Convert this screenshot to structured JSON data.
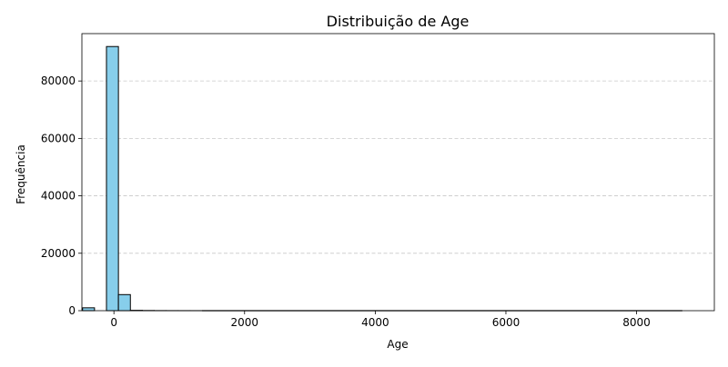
{
  "chart_data": {
    "type": "bar",
    "title": "Distribuição de Age",
    "xlabel": "Age",
    "ylabel": "Frequência",
    "xlim": [
      -490,
      9190
    ],
    "ylim": [
      0,
      96500
    ],
    "xticks": [
      0,
      2000,
      4000,
      6000,
      8000
    ],
    "yticks": [
      0,
      20000,
      40000,
      60000,
      80000
    ],
    "xtick_labels": [
      "0",
      "2000",
      "4000",
      "6000",
      "8000"
    ],
    "ytick_labels": [
      "0",
      "20000",
      "40000",
      "60000",
      "80000"
    ],
    "grid": {
      "axis": "y",
      "style": "dashed"
    },
    "bin_width": 183,
    "bins": [
      {
        "x0": -480,
        "x1": -297,
        "count": 1000
      },
      {
        "x0": -297,
        "x1": -114,
        "count": 0
      },
      {
        "x0": -114,
        "x1": 69,
        "count": 92000
      },
      {
        "x0": 69,
        "x1": 252,
        "count": 5600
      },
      {
        "x0": 252,
        "x1": 435,
        "count": 120
      },
      {
        "x0": 435,
        "x1": 618,
        "count": 60
      },
      {
        "x0": 618,
        "x1": 801,
        "count": 30
      },
      {
        "x0": 801,
        "x1": 984,
        "count": 20
      },
      {
        "x0": 984,
        "x1": 1167,
        "count": 15
      },
      {
        "x0": 1167,
        "x1": 1350,
        "count": 10
      }
    ],
    "baseline_end": 8700,
    "colors": {
      "bar_fill": "#87ceeb",
      "bar_edge": "#000000",
      "grid": "#c8c8c8"
    }
  }
}
